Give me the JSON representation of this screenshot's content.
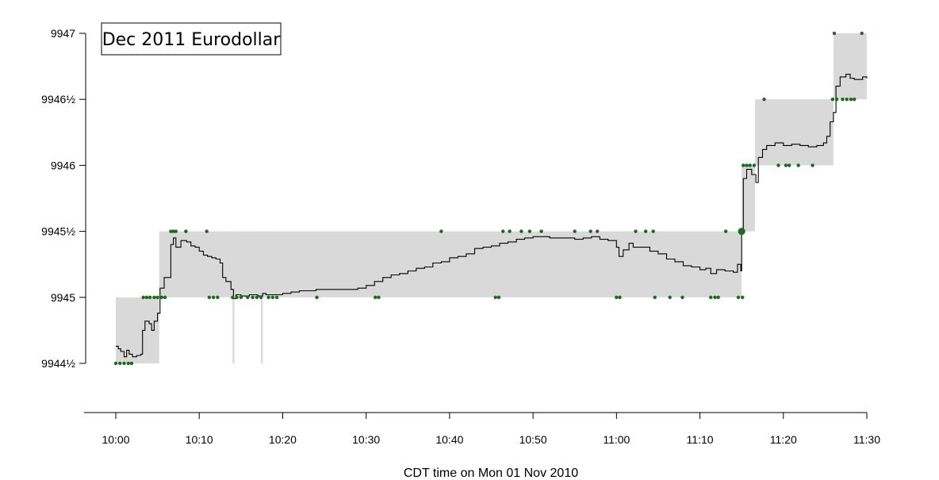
{
  "chart_data": {
    "type": "line",
    "title": "Dec 2011 Eurodollar",
    "xlabel": "CDT time on Mon 01 Nov 2010",
    "ylabel": "",
    "x_unit": "minutes after 10:00",
    "xlim": [
      0,
      90
    ],
    "ylim": [
      9944.5,
      9947
    ],
    "x_ticks": [
      {
        "value": 0,
        "label": "10:00"
      },
      {
        "value": 10,
        "label": "10:10"
      },
      {
        "value": 20,
        "label": "10:20"
      },
      {
        "value": 30,
        "label": "10:30"
      },
      {
        "value": 40,
        "label": "10:40"
      },
      {
        "value": 50,
        "label": "10:50"
      },
      {
        "value": 60,
        "label": "11:00"
      },
      {
        "value": 70,
        "label": "11:10"
      },
      {
        "value": 80,
        "label": "11:20"
      },
      {
        "value": 90,
        "label": "11:30"
      }
    ],
    "y_ticks": [
      {
        "value": 9944.5,
        "label": "9944½"
      },
      {
        "value": 9945,
        "label": "9945"
      },
      {
        "value": 9945.5,
        "label": "9945½"
      },
      {
        "value": 9946,
        "label": "9946"
      },
      {
        "value": 9946.5,
        "label": "9946½"
      },
      {
        "value": 9947,
        "label": "9947"
      }
    ],
    "price_bands": [
      {
        "start": 0,
        "end": 5.2,
        "low": 9944.5,
        "high": 9945
      },
      {
        "start": 5.2,
        "end": 75.0,
        "low": 9945,
        "high": 9945.5
      },
      {
        "start": 75.0,
        "end": 76.6,
        "low": 9945.5,
        "high": 9946
      },
      {
        "start": 76.6,
        "end": 86.0,
        "low": 9946,
        "high": 9946.5
      },
      {
        "start": 86.0,
        "end": 90.0,
        "low": 9946.5,
        "high": 9947
      }
    ],
    "gap_markers": [
      {
        "x": 14.1,
        "low": 9944.5,
        "high": 9945.5
      },
      {
        "x": 17.5,
        "low": 9944.5,
        "high": 9945.5
      }
    ],
    "series": [
      {
        "values": [
          [
            0,
            9944.63
          ],
          [
            0.3,
            9944.61
          ],
          [
            0.6,
            9944.59
          ],
          [
            1.0,
            9944.55
          ],
          [
            1.3,
            9944.6
          ],
          [
            1.6,
            9944.57
          ],
          [
            2.0,
            9944.55
          ],
          [
            2.5,
            9944.56
          ],
          [
            3.0,
            9944.57
          ],
          [
            3.2,
            9944.75
          ],
          [
            3.5,
            9944.82
          ],
          [
            4.0,
            9944.8
          ],
          [
            4.3,
            9944.75
          ],
          [
            4.6,
            9944.82
          ],
          [
            5.0,
            9944.88
          ],
          [
            5.3,
            9945.07
          ],
          [
            5.8,
            9945.15
          ],
          [
            6.3,
            9945.15
          ],
          [
            6.6,
            9945.4
          ],
          [
            6.9,
            9945.45
          ],
          [
            7.2,
            9945.38
          ],
          [
            7.8,
            9945.43
          ],
          [
            8.5,
            9945.42
          ],
          [
            9.0,
            9945.39
          ],
          [
            9.5,
            9945.38
          ],
          [
            10.0,
            9945.35
          ],
          [
            10.5,
            9945.32
          ],
          [
            11.0,
            9945.31
          ],
          [
            11.5,
            9945.3
          ],
          [
            12.0,
            9945.29
          ],
          [
            12.5,
            9945.26
          ],
          [
            12.8,
            9945.15
          ],
          [
            13.2,
            9945.12
          ],
          [
            13.8,
            9945.06
          ],
          [
            14.1,
            9944.99
          ],
          [
            14.4,
            9945.02
          ],
          [
            15.0,
            9945.01
          ],
          [
            16.0,
            9945.02
          ],
          [
            17.0,
            9945.01
          ],
          [
            17.6,
            9945.03
          ],
          [
            18.0,
            9945.02
          ],
          [
            19.0,
            9945.02
          ],
          [
            20.0,
            9945.03
          ],
          [
            21.0,
            9945.04
          ],
          [
            22.0,
            9945.05
          ],
          [
            23.0,
            9945.05
          ],
          [
            24.0,
            9945.06
          ],
          [
            25.0,
            9945.06
          ],
          [
            26.0,
            9945.06
          ],
          [
            27.0,
            9945.06
          ],
          [
            28.0,
            9945.06
          ],
          [
            29.0,
            9945.07
          ],
          [
            30.0,
            9945.09
          ],
          [
            31.0,
            9945.12
          ],
          [
            32.0,
            9945.15
          ],
          [
            33.0,
            9945.17
          ],
          [
            34.0,
            9945.18
          ],
          [
            35.0,
            9945.2
          ],
          [
            36.0,
            9945.22
          ],
          [
            37.0,
            9945.23
          ],
          [
            38.0,
            9945.26
          ],
          [
            39.0,
            9945.27
          ],
          [
            40.0,
            9945.3
          ],
          [
            41.0,
            9945.31
          ],
          [
            42.0,
            9945.33
          ],
          [
            43.0,
            9945.37
          ],
          [
            44.0,
            9945.38
          ],
          [
            45.0,
            9945.39
          ],
          [
            46.0,
            9945.41
          ],
          [
            47.0,
            9945.42
          ],
          [
            48.0,
            9945.44
          ],
          [
            49.0,
            9945.45
          ],
          [
            50.0,
            9945.46
          ],
          [
            51.0,
            9945.46
          ],
          [
            52.0,
            9945.45
          ],
          [
            53.0,
            9945.45
          ],
          [
            54.0,
            9945.45
          ],
          [
            55.0,
            9945.44
          ],
          [
            56.0,
            9945.45
          ],
          [
            57.0,
            9945.46
          ],
          [
            58.0,
            9945.44
          ],
          [
            59.0,
            9945.43
          ],
          [
            60.0,
            9945.38
          ],
          [
            60.3,
            9945.31
          ],
          [
            60.8,
            9945.36
          ],
          [
            61.5,
            9945.41
          ],
          [
            62.0,
            9945.38
          ],
          [
            63.0,
            9945.38
          ],
          [
            64.0,
            9945.35
          ],
          [
            65.0,
            9945.33
          ],
          [
            66.0,
            9945.29
          ],
          [
            67.0,
            9945.27
          ],
          [
            68.0,
            9945.24
          ],
          [
            69.0,
            9945.23
          ],
          [
            70.0,
            9945.21
          ],
          [
            70.7,
            9945.22
          ],
          [
            71.3,
            9945.18
          ],
          [
            72.0,
            9945.21
          ],
          [
            73.0,
            9945.2
          ],
          [
            74.0,
            9945.19
          ],
          [
            74.5,
            9945.25
          ],
          [
            74.9,
            9945.2
          ],
          [
            75.0,
            9945.5
          ],
          [
            75.2,
            9945.9
          ],
          [
            75.6,
            9945.97
          ],
          [
            76.2,
            9945.93
          ],
          [
            76.7,
            9945.87
          ],
          [
            77.0,
            9946.06
          ],
          [
            77.5,
            9946.12
          ],
          [
            78.0,
            9946.15
          ],
          [
            79.0,
            9946.17
          ],
          [
            80.0,
            9946.15
          ],
          [
            81.0,
            9946.16
          ],
          [
            82.0,
            9946.15
          ],
          [
            83.0,
            9946.14
          ],
          [
            84.0,
            9946.15
          ],
          [
            84.8,
            9946.17
          ],
          [
            85.2,
            9946.22
          ],
          [
            85.6,
            9946.33
          ],
          [
            86.0,
            9946.4
          ],
          [
            86.3,
            9946.6
          ],
          [
            86.8,
            9946.67
          ],
          [
            87.5,
            9946.69
          ],
          [
            88.0,
            9946.66
          ],
          [
            88.5,
            9946.65
          ],
          [
            89.0,
            9946.65
          ],
          [
            89.5,
            9946.67
          ],
          [
            90.0,
            9946.66
          ]
        ]
      }
    ],
    "markers": [
      [
        0.0,
        9944.5
      ],
      [
        0.5,
        9944.5
      ],
      [
        1.0,
        9944.5
      ],
      [
        1.5,
        9944.5
      ],
      [
        1.9,
        9944.5
      ],
      [
        3.3,
        9945
      ],
      [
        3.7,
        9945
      ],
      [
        4.1,
        9945
      ],
      [
        4.6,
        9945
      ],
      [
        5.0,
        9945
      ],
      [
        5.5,
        9945
      ],
      [
        5.9,
        9945
      ],
      [
        6.6,
        9945.5
      ],
      [
        6.9,
        9945.5
      ],
      [
        7.2,
        9945.5
      ],
      [
        8.4,
        9945.5
      ],
      [
        10.9,
        9945.5
      ],
      [
        11.2,
        9945
      ],
      [
        11.7,
        9945
      ],
      [
        12.2,
        9945
      ],
      [
        14.0,
        9945
      ],
      [
        14.5,
        9945
      ],
      [
        15.0,
        9945
      ],
      [
        15.8,
        9945
      ],
      [
        16.4,
        9945
      ],
      [
        16.9,
        9945
      ],
      [
        17.4,
        9945
      ],
      [
        18.3,
        9945
      ],
      [
        18.8,
        9945
      ],
      [
        19.3,
        9945
      ],
      [
        24.1,
        9945
      ],
      [
        31.1,
        9945
      ],
      [
        31.5,
        9945
      ],
      [
        39.0,
        9945.5
      ],
      [
        45.5,
        9945
      ],
      [
        45.9,
        9945
      ],
      [
        46.4,
        9945.5
      ],
      [
        47.2,
        9945.5
      ],
      [
        48.6,
        9945.5
      ],
      [
        49.6,
        9945.5
      ],
      [
        51.0,
        9945.5
      ],
      [
        55.0,
        9945.5
      ],
      [
        56.9,
        9945.5
      ],
      [
        57.7,
        9945.5
      ],
      [
        60.0,
        9945
      ],
      [
        60.4,
        9945
      ],
      [
        62.3,
        9945.5
      ],
      [
        63.5,
        9945.5
      ],
      [
        64.4,
        9945.5
      ],
      [
        64.6,
        9945
      ],
      [
        66.4,
        9945
      ],
      [
        67.9,
        9945
      ],
      [
        71.3,
        9945
      ],
      [
        71.8,
        9945
      ],
      [
        72.2,
        9945
      ],
      [
        73.1,
        9945.5
      ],
      [
        74.6,
        9945
      ],
      [
        75.1,
        9945
      ],
      [
        75.2,
        9946
      ],
      [
        75.6,
        9946
      ],
      [
        76.0,
        9946
      ],
      [
        76.5,
        9946
      ],
      [
        77.7,
        9946.5
      ],
      [
        79.4,
        9946
      ],
      [
        80.3,
        9946
      ],
      [
        80.7,
        9946
      ],
      [
        81.8,
        9946
      ],
      [
        83.5,
        9946
      ],
      [
        85.9,
        9946.5
      ],
      [
        86.4,
        9946.5
      ],
      [
        87.1,
        9946.5
      ],
      [
        87.6,
        9946.5
      ],
      [
        88.1,
        9946.5
      ],
      [
        86.1,
        9947
      ],
      [
        89.4,
        9947
      ],
      [
        88.5,
        9946.5
      ]
    ],
    "highlight_marker": [
      75.0,
      9945.5
    ],
    "colors": {
      "line": "#000000",
      "band": "#d9d9d9",
      "marker": "#1a6b1a",
      "gap": "#d9d9d9"
    }
  }
}
